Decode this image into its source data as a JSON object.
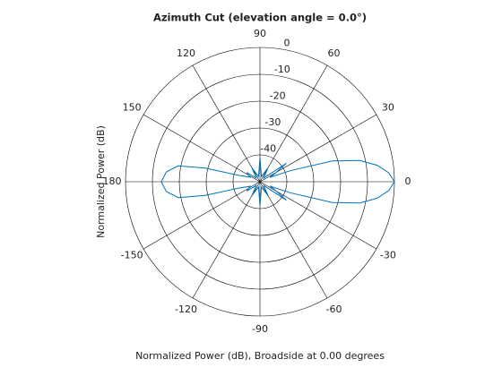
{
  "chart_data": {
    "type": "polar",
    "title": "Azimuth Cut (elevation angle = 0.0°)",
    "y_label": "Normalized Power (dB)",
    "x_label": "Normalized Power (dB), Broadside at 0.00 degrees",
    "x": [
      -180,
      -174,
      -169,
      -166,
      -163,
      -155,
      -145,
      -135,
      -120,
      -105,
      -90,
      -75,
      -60,
      -45,
      -35,
      -28,
      -24,
      -20,
      -16,
      -12,
      -8,
      -4,
      0,
      4,
      8,
      12,
      16,
      20,
      24,
      28,
      35,
      45,
      60,
      75,
      90,
      105,
      120,
      135,
      145,
      155,
      163,
      166,
      169,
      174,
      180
    ],
    "values": [
      -13.3,
      -15,
      -19,
      -29,
      -42,
      -46,
      -44,
      -48,
      -44,
      -48,
      -41,
      -48,
      -44,
      -48,
      -38,
      -44,
      -46,
      -38,
      -22,
      -12,
      -6,
      -2,
      0,
      -2,
      -6,
      -12,
      -22,
      -38,
      -46,
      -44,
      -38,
      -48,
      -44,
      -48,
      -41,
      -48,
      -44,
      -48,
      -44,
      -46,
      -42,
      -29,
      -19,
      -15,
      -13.3
    ],
    "color": "#0072bd",
    "rlim": [
      -50,
      0
    ],
    "rticks": [
      0,
      -10,
      -20,
      -30,
      -40
    ],
    "thetaticks": [
      0,
      30,
      60,
      90,
      120,
      150,
      180,
      -150,
      -120,
      -90,
      -60,
      -30
    ]
  }
}
